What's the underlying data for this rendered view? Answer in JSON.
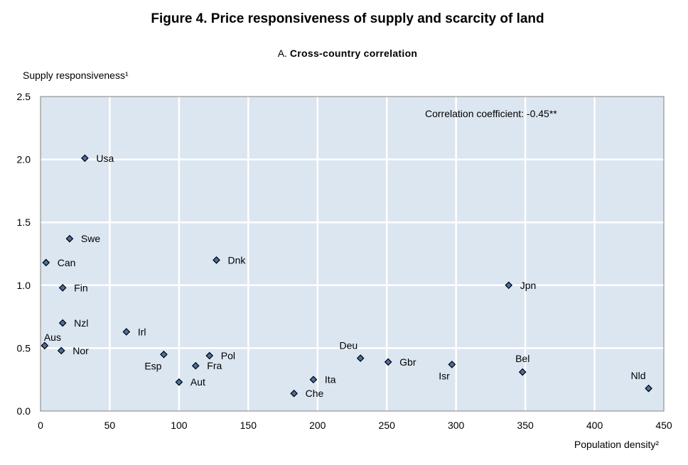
{
  "chart_data": {
    "type": "scatter",
    "title": "Figure 4. Price responsiveness of supply and scarcity of land",
    "subtitle_prefix": "A.",
    "subtitle": "Cross-country correlation",
    "xlabel": "Population density²",
    "ylabel": "Supply responsiveness¹",
    "xlim": [
      0,
      450
    ],
    "ylim": [
      0,
      2.5
    ],
    "xticks": [
      0,
      50,
      100,
      150,
      200,
      250,
      300,
      350,
      400,
      450
    ],
    "yticks": [
      0.0,
      0.5,
      1.0,
      1.5,
      2.0,
      2.5
    ],
    "grid": true,
    "annotation": "Correlation coefficient: -0.45**",
    "marker_color": "#4a6fa5",
    "background_color": "#dce6f1",
    "points": [
      {
        "label": "Usa",
        "x": 32,
        "y": 2.01,
        "pos": "right"
      },
      {
        "label": "Swe",
        "x": 21,
        "y": 1.37,
        "pos": "right"
      },
      {
        "label": "Can",
        "x": 4,
        "y": 1.18,
        "pos": "right"
      },
      {
        "label": "Fin",
        "x": 16,
        "y": 0.98,
        "pos": "right"
      },
      {
        "label": "Nzl",
        "x": 16,
        "y": 0.7,
        "pos": "right"
      },
      {
        "label": "Aus",
        "x": 3,
        "y": 0.52,
        "pos": "above-right"
      },
      {
        "label": "Nor",
        "x": 15,
        "y": 0.48,
        "pos": "right"
      },
      {
        "label": "Irl",
        "x": 62,
        "y": 0.63,
        "pos": "right"
      },
      {
        "label": "Dnk",
        "x": 127,
        "y": 1.2,
        "pos": "right"
      },
      {
        "label": "Esp",
        "x": 89,
        "y": 0.45,
        "pos": "below-left"
      },
      {
        "label": "Fra",
        "x": 112,
        "y": 0.36,
        "pos": "right"
      },
      {
        "label": "Aut",
        "x": 100,
        "y": 0.23,
        "pos": "right"
      },
      {
        "label": "Pol",
        "x": 122,
        "y": 0.44,
        "pos": "right"
      },
      {
        "label": "Che",
        "x": 183,
        "y": 0.14,
        "pos": "right"
      },
      {
        "label": "Ita",
        "x": 197,
        "y": 0.25,
        "pos": "right"
      },
      {
        "label": "Deu",
        "x": 231,
        "y": 0.42,
        "pos": "above-left"
      },
      {
        "label": "Gbr",
        "x": 251,
        "y": 0.39,
        "pos": "right"
      },
      {
        "label": "Isr",
        "x": 297,
        "y": 0.37,
        "pos": "below-left"
      },
      {
        "label": "Jpn",
        "x": 338,
        "y": 1.0,
        "pos": "right"
      },
      {
        "label": "Bel",
        "x": 348,
        "y": 0.31,
        "pos": "above"
      },
      {
        "label": "Nld",
        "x": 439,
        "y": 0.18,
        "pos": "above-left"
      }
    ]
  }
}
